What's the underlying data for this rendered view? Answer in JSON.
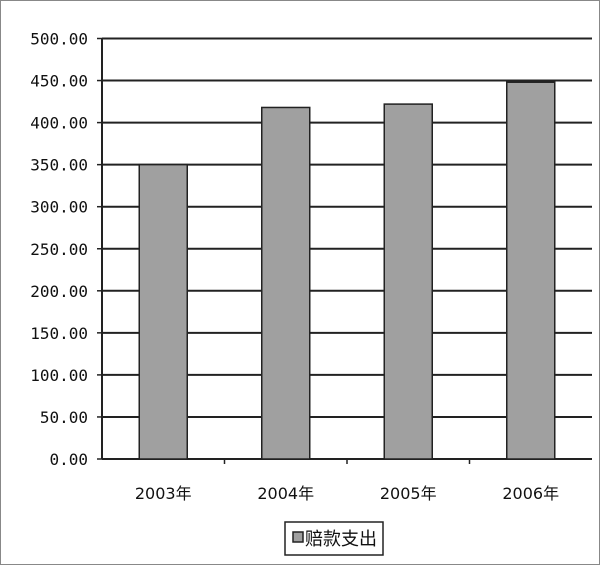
{
  "chart_data": {
    "type": "bar",
    "title": "",
    "xlabel": "",
    "ylabel": "",
    "categories": [
      "2003年",
      "2004年",
      "2005年",
      "2006年"
    ],
    "series": [
      {
        "name": "赔款支出",
        "values": [
          350,
          418,
          422,
          448
        ],
        "color": "#a0a0a0"
      }
    ],
    "ylim": [
      0,
      500
    ],
    "yticks": [
      "0.00",
      "50.00",
      "100.00",
      "150.00",
      "200.00",
      "250.00",
      "300.00",
      "350.00",
      "400.00",
      "450.00",
      "500.00"
    ],
    "grid": true,
    "legend_position": "bottom"
  }
}
